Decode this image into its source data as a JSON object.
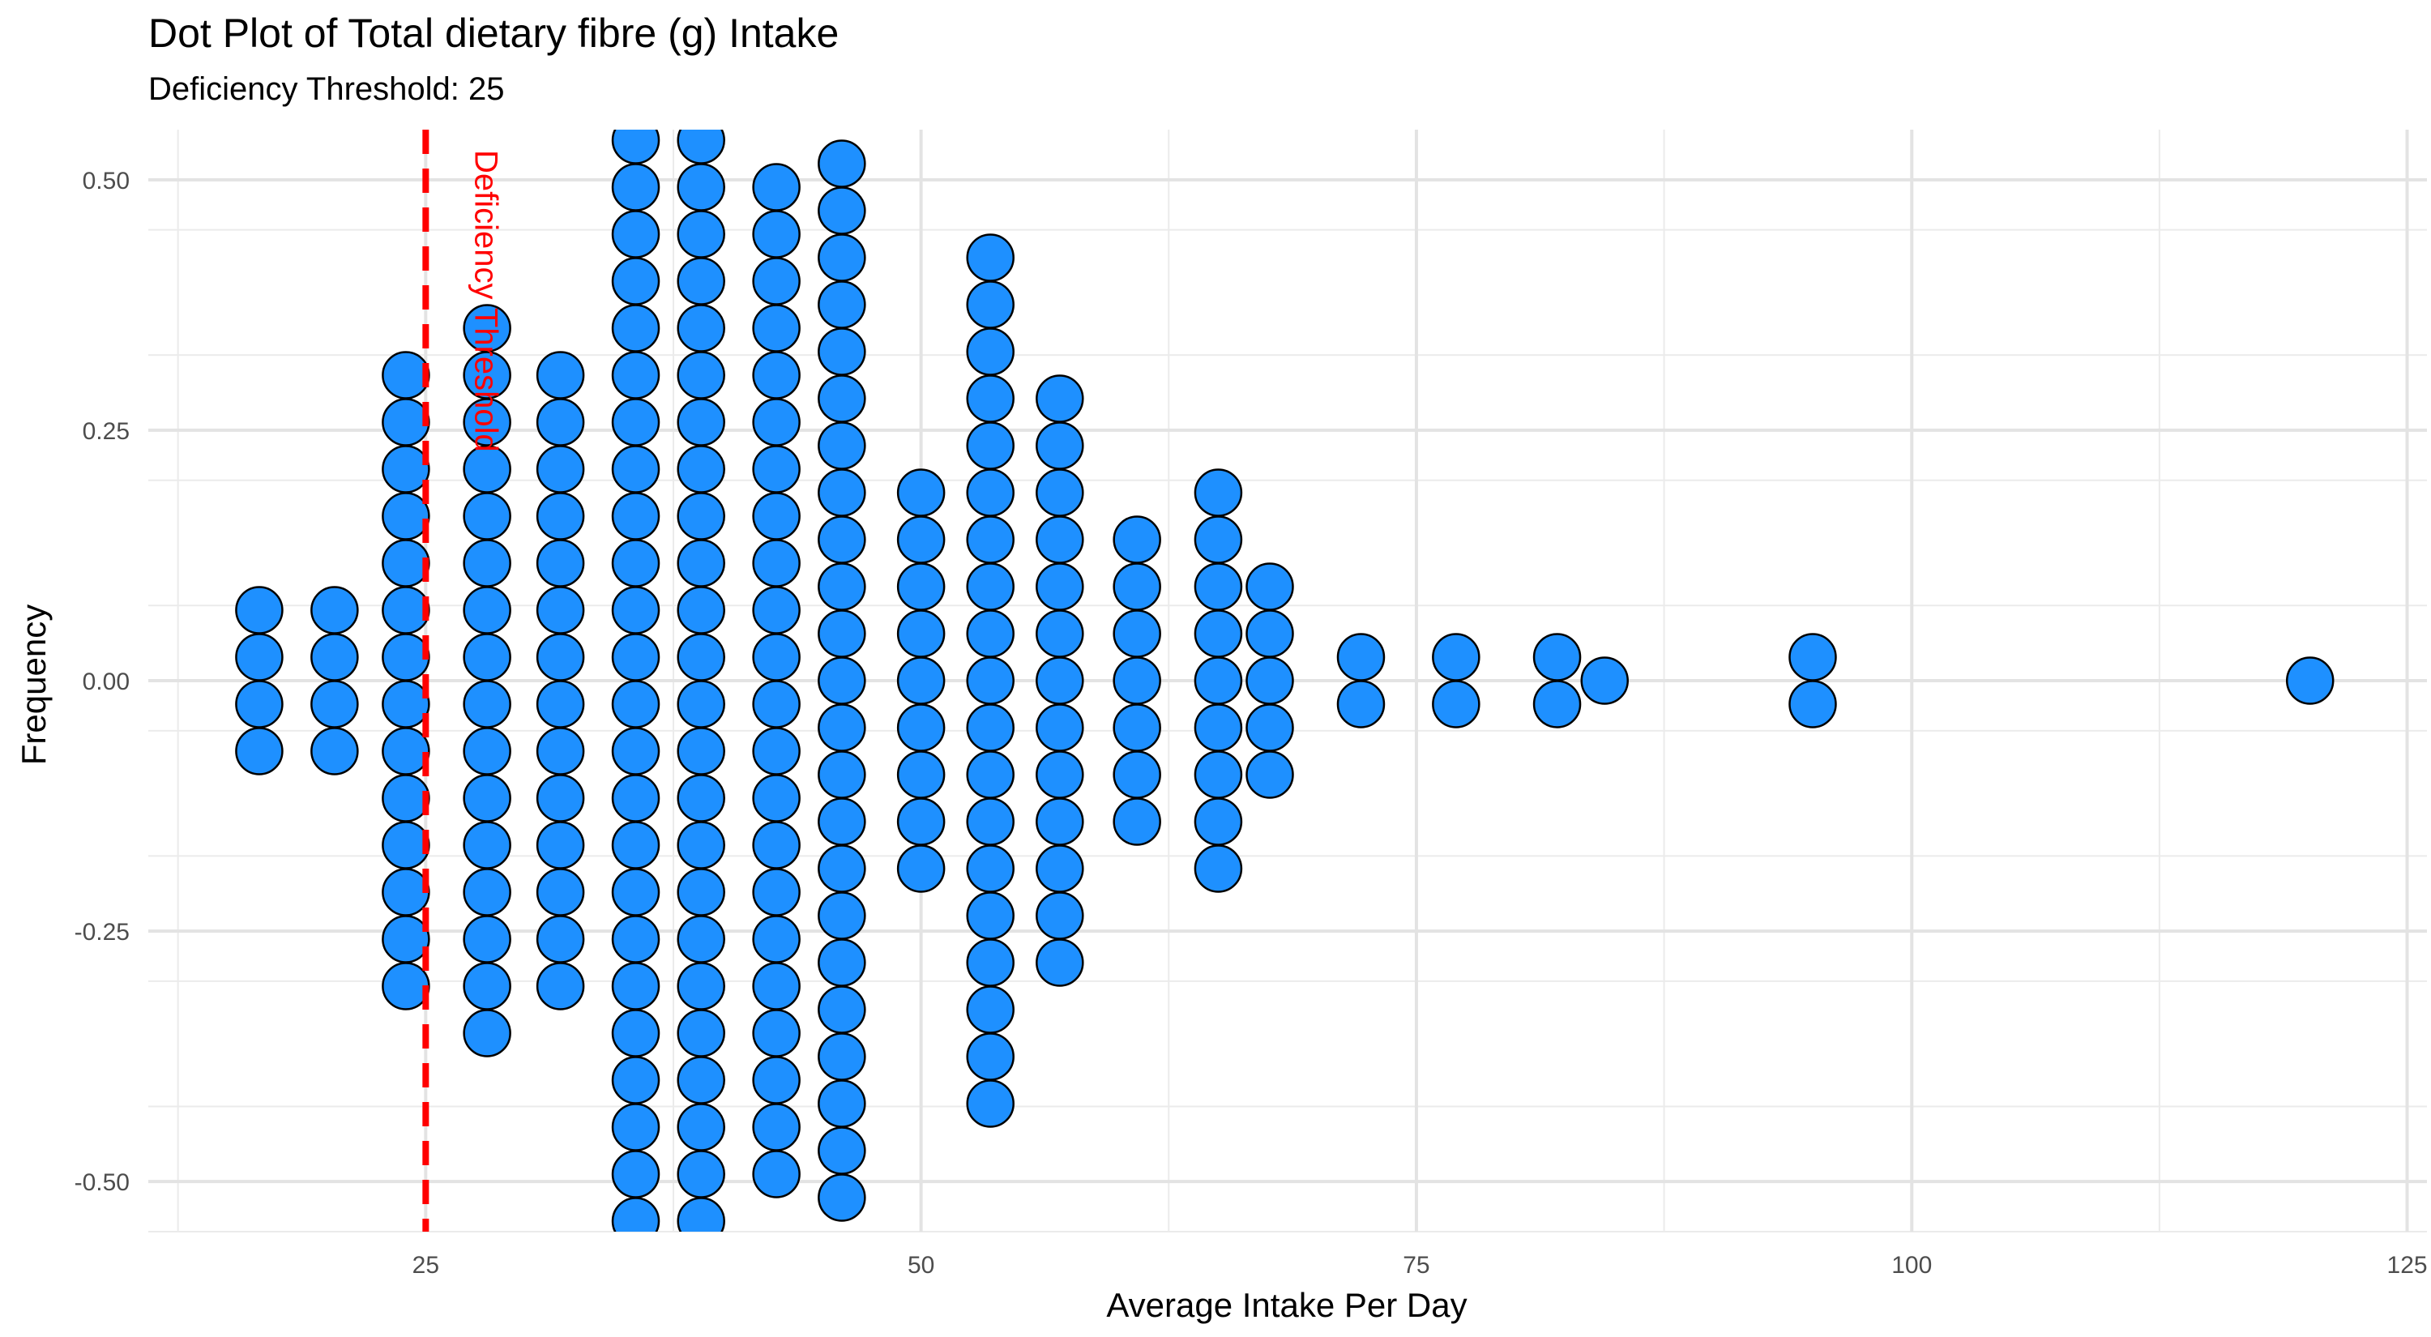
{
  "chart_data": {
    "type": "scatter",
    "subtype": "dotplot",
    "title": "Dot Plot of Total dietary fibre (g) Intake",
    "subtitle": "Deficiency Threshold: 25",
    "xlabel": "Average Intake Per Day",
    "ylabel": "Frequency",
    "xlim": [
      11,
      126
    ],
    "ylim": [
      -0.55,
      0.55
    ],
    "x_ticks": [
      "25",
      "50",
      "75",
      "100",
      "125"
    ],
    "y_ticks": [
      "0.50",
      "0.25",
      "0.00",
      "-0.25",
      "-0.50"
    ],
    "grid": true,
    "dot_color": "#1E90FF",
    "dot_outline": "#000000",
    "stacks": [
      {
        "x": 16.6,
        "count": 4
      },
      {
        "x": 20.4,
        "count": 4
      },
      {
        "x": 24.0,
        "count": 14
      },
      {
        "x": 28.1,
        "count": 16
      },
      {
        "x": 31.8,
        "count": 14
      },
      {
        "x": 35.6,
        "count": 26
      },
      {
        "x": 38.9,
        "count": 24
      },
      {
        "x": 42.7,
        "count": 22
      },
      {
        "x": 46.0,
        "count": 23
      },
      {
        "x": 50.0,
        "count": 9
      },
      {
        "x": 53.5,
        "count": 19
      },
      {
        "x": 57.0,
        "count": 13
      },
      {
        "x": 60.9,
        "count": 7
      },
      {
        "x": 65.0,
        "count": 9
      },
      {
        "x": 67.6,
        "count": 5
      },
      {
        "x": 72.2,
        "count": 2
      },
      {
        "x": 77.0,
        "count": 2
      },
      {
        "x": 82.1,
        "count": 2
      },
      {
        "x": 84.5,
        "count": 1
      },
      {
        "x": 95.0,
        "count": 2
      },
      {
        "x": 120.1,
        "count": 1
      }
    ],
    "threshold": {
      "x": 25,
      "label": "Deficiency Threshold",
      "color": "#FF0000"
    }
  }
}
